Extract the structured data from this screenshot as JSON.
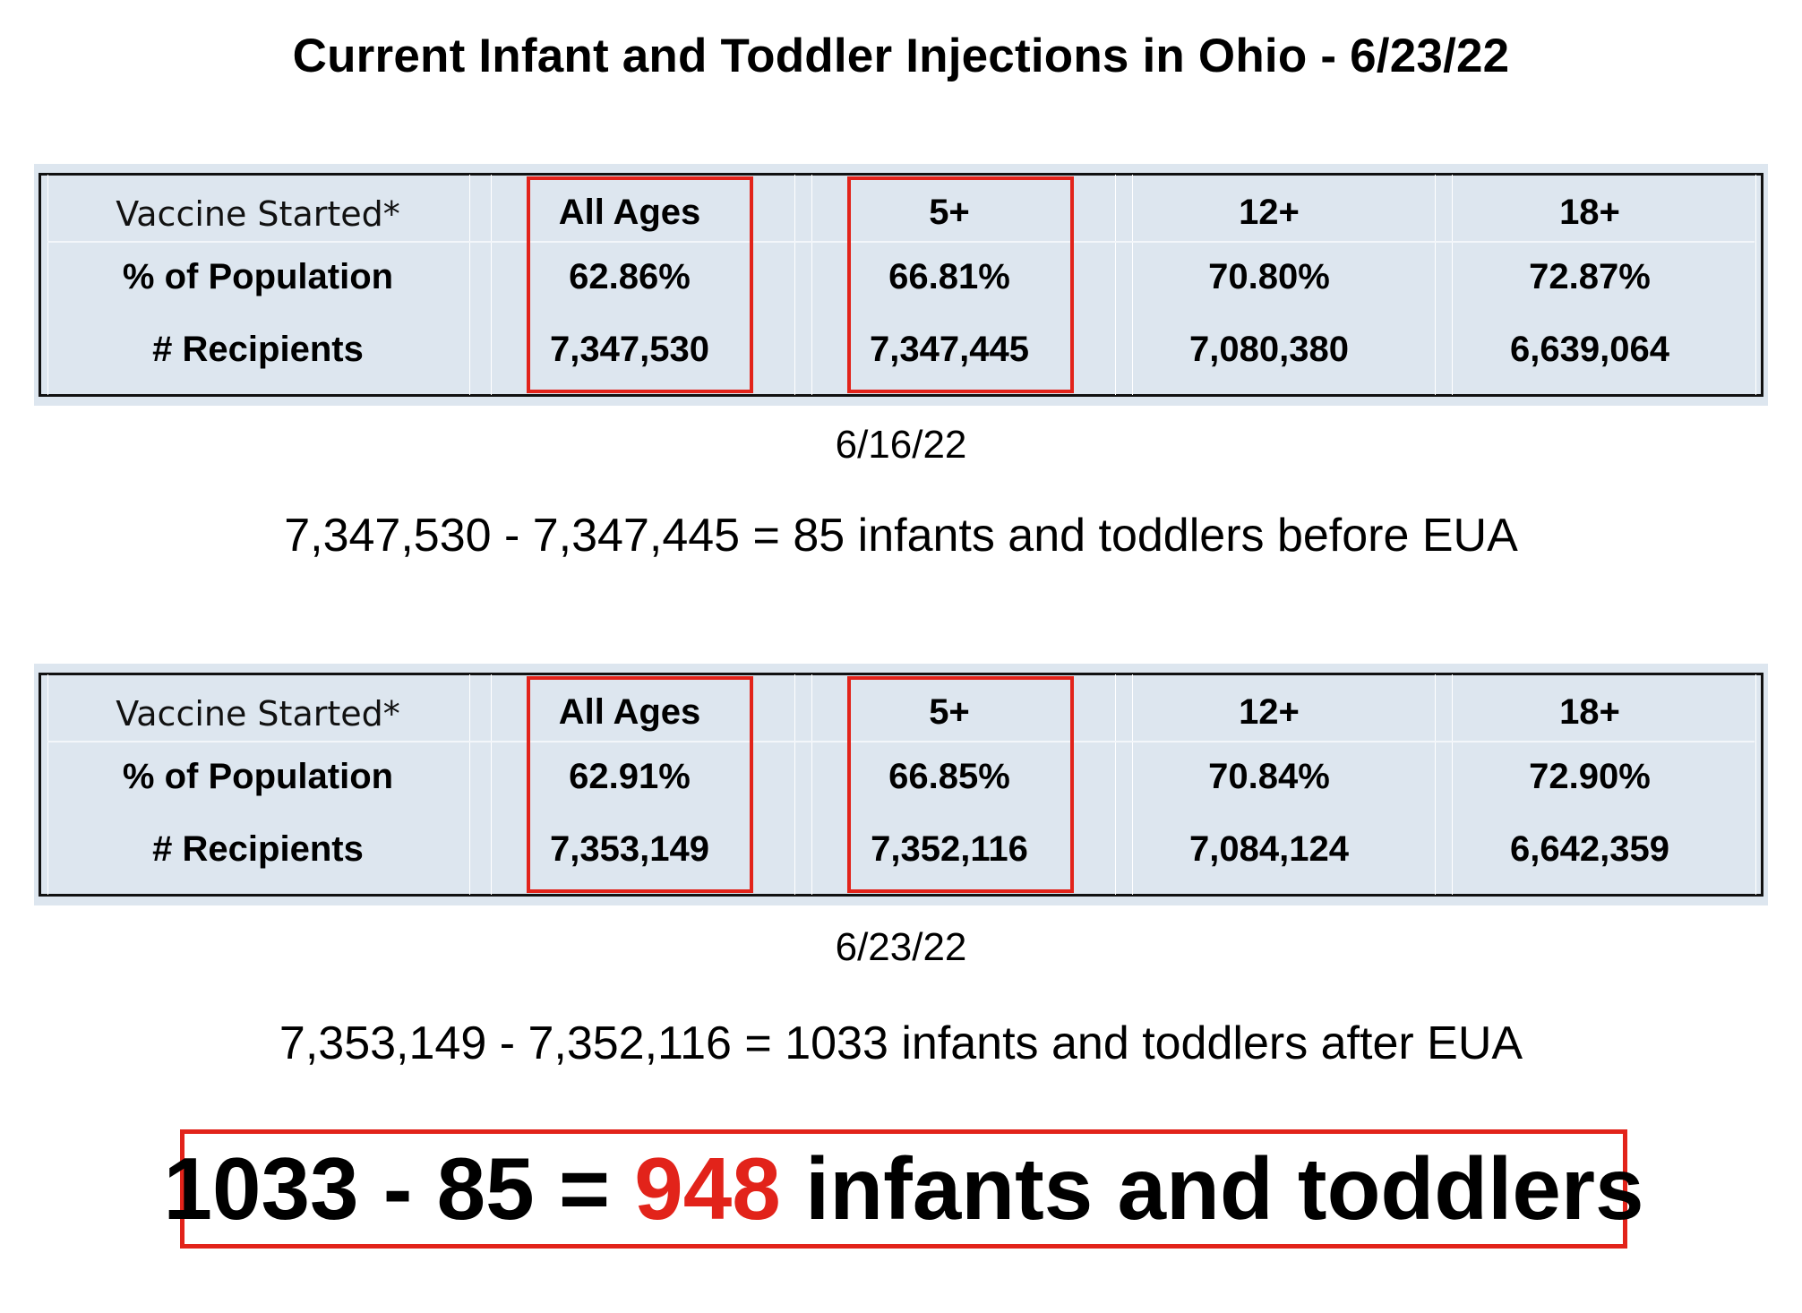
{
  "title": "Current Infant and Toddler Injections in Ohio - 6/23/22",
  "row_labels": {
    "vaccine_started": "Vaccine Started*",
    "percent": "% of Population",
    "recipients": "# Recipients"
  },
  "table1": {
    "columns": [
      {
        "header": "All Ages",
        "percent": "62.86%",
        "recipients": "7,347,530",
        "highlighted": true
      },
      {
        "header": "5+",
        "percent": "66.81%",
        "recipients": "7,347,445",
        "highlighted": true
      },
      {
        "header": "12+",
        "percent": "70.80%",
        "recipients": "7,080,380",
        "highlighted": false
      },
      {
        "header": "18+",
        "percent": "72.87%",
        "recipients": "6,639,064",
        "highlighted": false
      }
    ],
    "date": "6/16/22",
    "calc": "7,347,530 - 7,347,445 = 85 infants and toddlers before EUA"
  },
  "table2": {
    "columns": [
      {
        "header": "All Ages",
        "percent": "62.91%",
        "recipients": "7,353,149",
        "highlighted": true
      },
      {
        "header": "5+",
        "percent": "66.85%",
        "recipients": "7,352,116",
        "highlighted": true
      },
      {
        "header": "12+",
        "percent": "70.84%",
        "recipients": "7,084,124",
        "highlighted": false
      },
      {
        "header": "18+",
        "percent": "72.90%",
        "recipients": "6,642,359",
        "highlighted": false
      }
    ],
    "date": "6/23/22",
    "calc": "7,353,149 - 7,352,116 = 1033 infants and toddlers after EUA"
  },
  "result": {
    "prefix": "1033 - 85 = ",
    "value": "948",
    "suffix": " infants and toddlers"
  },
  "colors": {
    "highlight_red": "#e2231a",
    "table_bg": "#dde6ef"
  }
}
